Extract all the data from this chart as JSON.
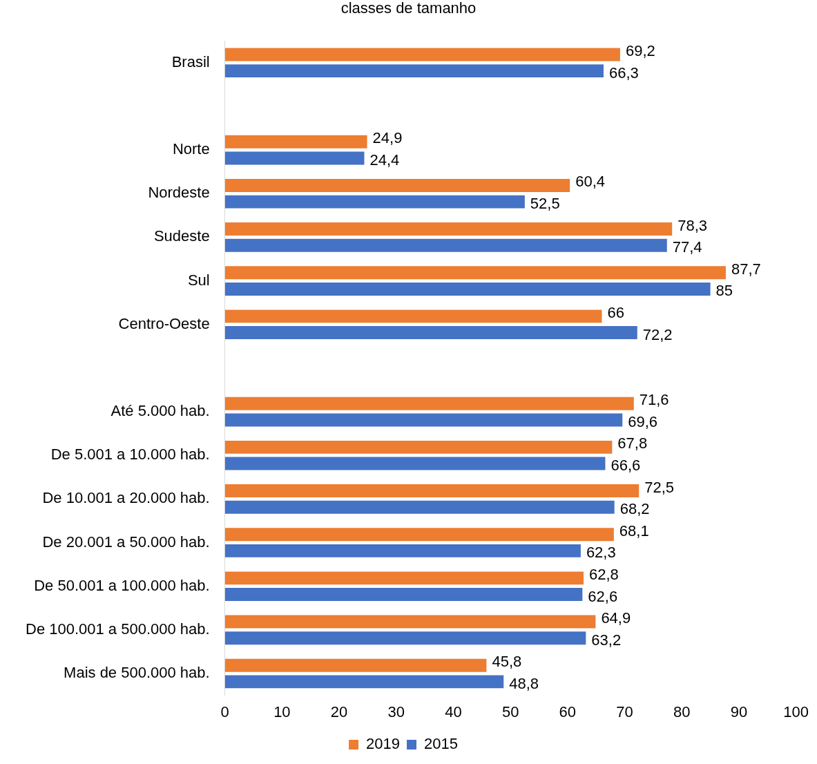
{
  "chart_data": {
    "type": "bar",
    "orientation": "horizontal",
    "title": "classes de tamanho",
    "categories": [
      "Brasil",
      null,
      "Norte",
      "Nordeste",
      "Sudeste",
      "Sul",
      "Centro-Oeste",
      null,
      "Até 5.000 hab.",
      "De 5.001 a 10.000 hab.",
      "De 10.001 a 20.000 hab.",
      "De 20.001 a 50.000 hab.",
      "De 50.001 a 100.000 hab.",
      "De 100.001 a 500.000 hab.",
      "Mais de 500.000 hab."
    ],
    "series": [
      {
        "name": "2019",
        "color": "#ed7d31",
        "values": [
          69.2,
          null,
          24.9,
          60.4,
          78.3,
          87.7,
          66,
          null,
          71.6,
          67.8,
          72.5,
          68.1,
          62.8,
          64.9,
          45.8
        ],
        "value_labels": [
          "69,2",
          null,
          "24,9",
          "60,4",
          "78,3",
          "87,7",
          "66",
          null,
          "71,6",
          "67,8",
          "72,5",
          "68,1",
          "62,8",
          "64,9",
          "45,8"
        ]
      },
      {
        "name": "2015",
        "color": "#4472c4",
        "values": [
          66.3,
          null,
          24.4,
          52.5,
          77.4,
          85,
          72.2,
          null,
          69.6,
          66.6,
          68.2,
          62.3,
          62.6,
          63.2,
          48.8
        ],
        "value_labels": [
          "66,3",
          null,
          "24,4",
          "52,5",
          "77,4",
          "85",
          "72,2",
          null,
          "69,6",
          "66,6",
          "68,2",
          "62,3",
          "62,6",
          "63,2",
          "48,8"
        ]
      }
    ],
    "xlim": [
      0,
      100
    ],
    "xticks": [
      0,
      10,
      20,
      30,
      40,
      50,
      60,
      70,
      80,
      90,
      100
    ],
    "grid": false,
    "legend": "bottom"
  }
}
